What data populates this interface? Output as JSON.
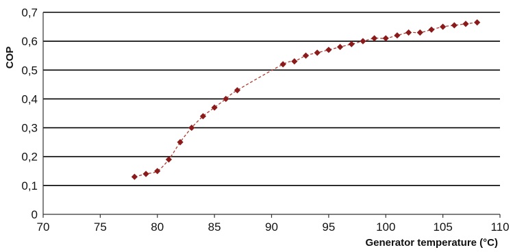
{
  "chart_data": {
    "type": "line",
    "title": "",
    "xlabel": "Generator temperature (°C)",
    "ylabel": "COP",
    "xlim": [
      70,
      110
    ],
    "ylim": [
      0,
      0.7
    ],
    "x_ticks": [
      "70",
      "75",
      "80",
      "85",
      "90",
      "95",
      "100",
      "105",
      "110"
    ],
    "y_ticks": [
      "0",
      "0,1",
      "0,2",
      "0,3",
      "0,4",
      "0,5",
      "0,6",
      "0,7"
    ],
    "grid": "horizontal",
    "legend": "none",
    "colors": {
      "line": "#b03a2e",
      "marker": "#8b1a1a",
      "grid": "#000000",
      "axis": "#333333"
    },
    "series": [
      {
        "x": [
          78,
          79,
          80,
          81,
          82,
          83,
          84,
          85,
          86,
          87,
          91,
          92,
          93,
          94,
          95,
          96,
          97,
          98,
          99,
          100,
          101,
          102,
          103,
          104,
          105,
          106,
          107,
          108
        ],
        "values": [
          0.13,
          0.14,
          0.15,
          0.19,
          0.25,
          0.3,
          0.34,
          0.37,
          0.4,
          0.43,
          0.52,
          0.53,
          0.55,
          0.56,
          0.57,
          0.58,
          0.59,
          0.6,
          0.61,
          0.61,
          0.62,
          0.63,
          0.63,
          0.64,
          0.65,
          0.655,
          0.66,
          0.665
        ]
      }
    ]
  }
}
